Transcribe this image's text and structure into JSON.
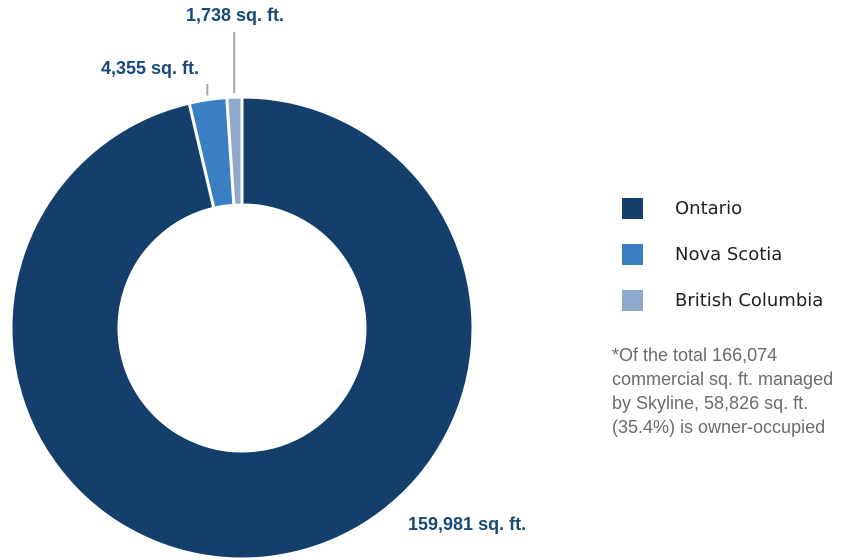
{
  "chart_data": {
    "type": "pie",
    "donut": true,
    "title": "",
    "series": [
      {
        "name": "Ontario",
        "value": 159981,
        "label": "159,981 sq. ft.",
        "color": "#143f6b"
      },
      {
        "name": "Nova Scotia",
        "value": 4355,
        "label": "4,355 sq. ft.",
        "color": "#3a7fc4"
      },
      {
        "name": "British Columbia",
        "value": 1738,
        "label": "1,738 sq. ft.",
        "color": "#8fa8cc"
      }
    ],
    "legend_position": "right"
  },
  "footnote": {
    "lines": [
      "*Of the total 166,074",
      "commercial sq. ft. managed",
      "by Skyline, 58,826 sq. ft.",
      "(35.4%) is owner-occupied"
    ]
  }
}
